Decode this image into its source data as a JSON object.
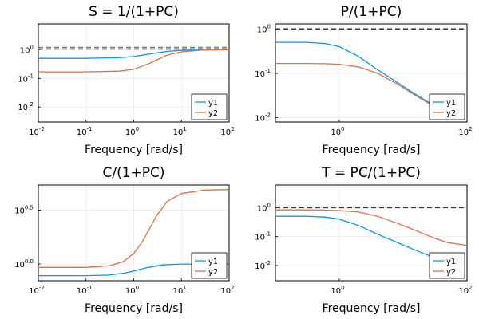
{
  "colors": {
    "y1": "#009af9",
    "y2": "#e26f46",
    "ref_dash": "#333333",
    "s_dash1": "#3da44d",
    "s_dash2": "#c271d2"
  },
  "legend_labels": [
    "y1",
    "y2"
  ],
  "chart_data": [
    {
      "type": "line",
      "title": "S = 1/(1+PC)",
      "xlabel": "Frequency [rad/s]",
      "xscale": "log",
      "yscale": "log",
      "xlim": [
        0.01,
        100
      ],
      "ylim": [
        0.003,
        8
      ],
      "xticks": [
        "-2",
        "-1",
        "0",
        "1",
        "2"
      ],
      "yticks": [
        "0",
        "-1",
        "-2"
      ],
      "grid": true,
      "legend": "bottom-right",
      "series": [
        {
          "name": "y1",
          "x": [
            0.01,
            0.1,
            0.5,
            1,
            2,
            5,
            10,
            30,
            100
          ],
          "values": [
            0.5,
            0.5,
            0.53,
            0.58,
            0.7,
            0.88,
            0.95,
            0.99,
            1.0
          ]
        },
        {
          "name": "y2",
          "x": [
            0.01,
            0.1,
            0.5,
            1,
            2,
            5,
            10,
            30,
            100
          ],
          "values": [
            0.17,
            0.17,
            0.18,
            0.21,
            0.32,
            0.65,
            0.85,
            0.98,
            1.0
          ]
        }
      ],
      "hlines": [
        1.2,
        1.2
      ]
    },
    {
      "type": "line",
      "title": "P/(1+PC)",
      "xlabel": "Frequency [rad/s]",
      "xscale": "log",
      "yscale": "log",
      "xlim": [
        0.1,
        100
      ],
      "ylim": [
        0.008,
        1.3
      ],
      "xticks": [
        "0",
        "2"
      ],
      "yticks": [
        "0",
        "-1",
        "-2"
      ],
      "grid": true,
      "legend": "bottom-right",
      "series": [
        {
          "name": "y1",
          "x": [
            0.1,
            0.3,
            0.6,
            1,
            2,
            4,
            8,
            15,
            30,
            50
          ],
          "values": [
            0.5,
            0.5,
            0.47,
            0.4,
            0.24,
            0.12,
            0.063,
            0.035,
            0.019,
            0.012
          ]
        },
        {
          "name": "y2",
          "x": [
            0.1,
            0.3,
            0.6,
            1,
            2,
            4,
            8,
            15,
            30,
            50
          ],
          "values": [
            0.167,
            0.167,
            0.165,
            0.16,
            0.14,
            0.1,
            0.058,
            0.033,
            0.018,
            0.012
          ]
        }
      ],
      "hlines": [
        1.0
      ]
    },
    {
      "type": "line",
      "title": "C/(1+PC)",
      "xlabel": "Frequency [rad/s]",
      "xscale": "log",
      "yscale": "log",
      "xlim": [
        0.01,
        100
      ],
      "ylim": [
        0.7,
        5.4
      ],
      "xticks": [
        "-2",
        "-1",
        "0",
        "1",
        "2"
      ],
      "yticks": [
        "0.5",
        "0.0"
      ],
      "grid": true,
      "legend": "bottom-right",
      "series": [
        {
          "name": "y1",
          "x": [
            0.01,
            0.1,
            0.3,
            0.6,
            1,
            2,
            4,
            10,
            30,
            100
          ],
          "values": [
            0.78,
            0.78,
            0.79,
            0.82,
            0.86,
            0.93,
            0.98,
            1.0,
            1.0,
            1.0
          ]
        },
        {
          "name": "y2",
          "x": [
            0.01,
            0.1,
            0.3,
            0.6,
            1,
            1.5,
            2,
            3,
            5,
            10,
            30,
            100
          ],
          "values": [
            0.93,
            0.93,
            0.96,
            1.05,
            1.25,
            1.6,
            2.0,
            2.8,
            3.8,
            4.5,
            4.85,
            4.9
          ]
        }
      ]
    },
    {
      "type": "line",
      "title": "T = PC/(1+PC)",
      "xlabel": "Frequency [rad/s]",
      "xscale": "log",
      "yscale": "log",
      "xlim": [
        0.1,
        100
      ],
      "ylim": [
        0.003,
        6
      ],
      "xticks": [
        "0",
        "2"
      ],
      "yticks": [
        "0",
        "-1",
        "-2"
      ],
      "grid": true,
      "legend": "bottom-right",
      "series": [
        {
          "name": "y1",
          "x": [
            0.1,
            0.3,
            0.6,
            1,
            2,
            4,
            8,
            15,
            30,
            50
          ],
          "values": [
            0.5,
            0.5,
            0.47,
            0.4,
            0.24,
            0.12,
            0.063,
            0.035,
            0.019,
            0.012
          ]
        },
        {
          "name": "y2",
          "x": [
            0.1,
            0.3,
            0.6,
            1,
            2,
            4,
            8,
            15,
            30,
            50,
            100
          ],
          "values": [
            0.83,
            0.83,
            0.82,
            0.79,
            0.7,
            0.5,
            0.29,
            0.17,
            0.09,
            0.062,
            0.05
          ]
        }
      ],
      "hlines": [
        1.0
      ]
    }
  ]
}
